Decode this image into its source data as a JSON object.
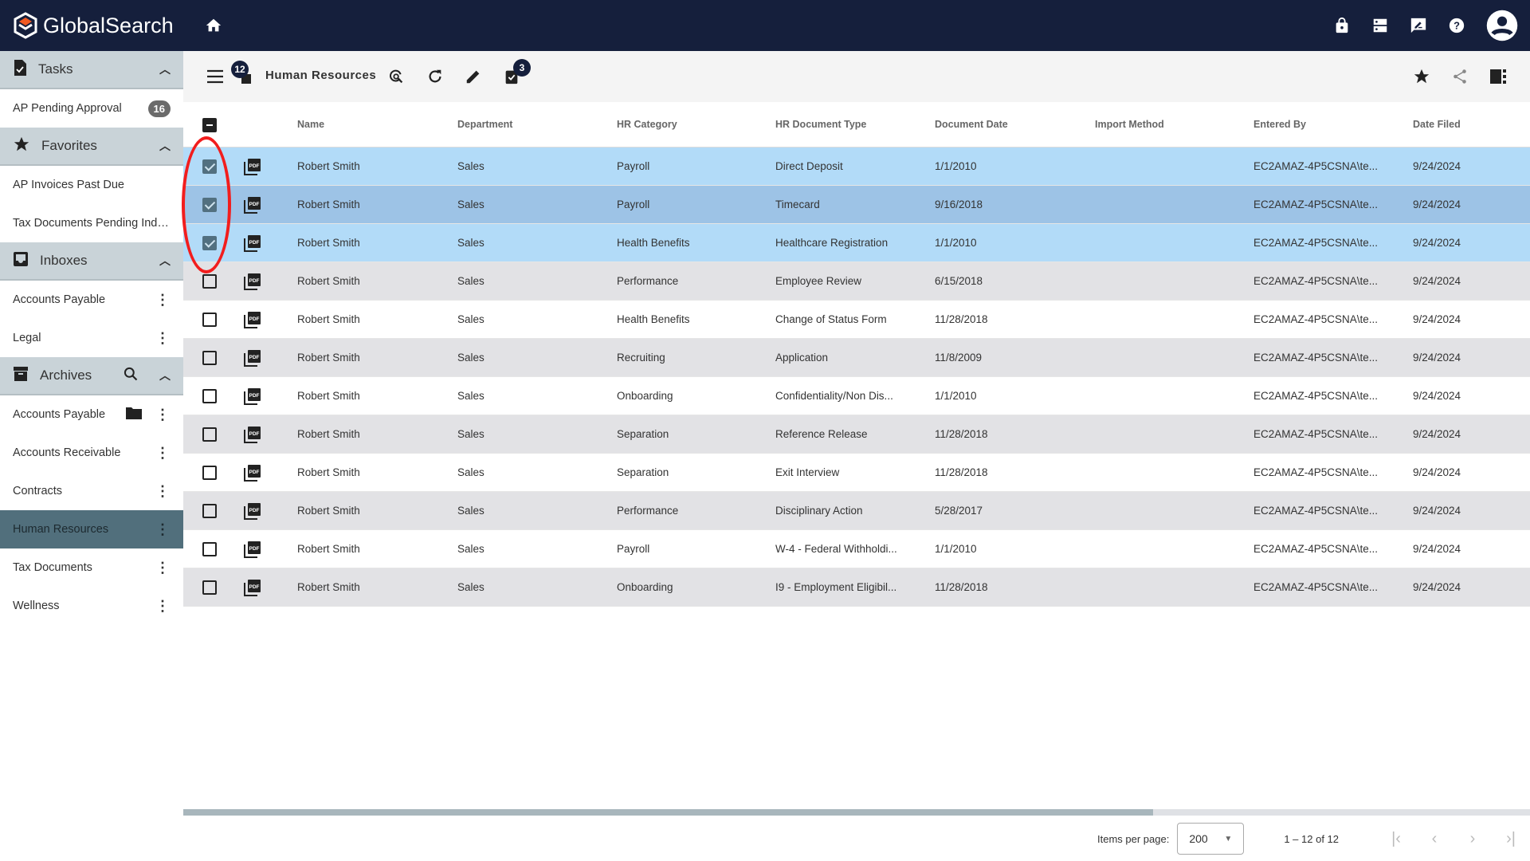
{
  "app": {
    "title": "GlobalSearch"
  },
  "topbar": {
    "icons": [
      "home-icon",
      "lock-icon",
      "server-icon",
      "feedback-icon",
      "help-icon",
      "account-icon"
    ]
  },
  "sidebar": {
    "sections": [
      {
        "title": "Tasks",
        "icon": "task-icon",
        "items": [
          {
            "label": "AP Pending Approval",
            "badge": "16"
          }
        ]
      },
      {
        "title": "Favorites",
        "icon": "star-icon",
        "items": [
          {
            "label": "AP Invoices Past Due"
          },
          {
            "label": "Tax Documents Pending Indexing"
          }
        ]
      },
      {
        "title": "Inboxes",
        "icon": "inbox-icon",
        "items": [
          {
            "label": "Accounts Payable",
            "menu": true
          },
          {
            "label": "Legal",
            "menu": true
          }
        ]
      },
      {
        "title": "Archives",
        "icon": "archive-icon",
        "search": true,
        "items": [
          {
            "label": "Accounts Payable",
            "folder": true,
            "menu": true
          },
          {
            "label": "Accounts Receivable",
            "menu": true
          },
          {
            "label": "Contracts",
            "menu": true
          },
          {
            "label": "Human Resources",
            "menu": true,
            "active": true
          },
          {
            "label": "Tax Documents",
            "menu": true
          },
          {
            "label": "Wellness",
            "menu": true
          }
        ]
      }
    ]
  },
  "toolbar": {
    "doc_count": "12",
    "title": "Human Resources",
    "selected_count": "3"
  },
  "table": {
    "columns": [
      "Name",
      "Department",
      "HR Category",
      "HR Document Type",
      "Document Date",
      "Import Method",
      "Entered By",
      "Date Filed"
    ],
    "rows": [
      {
        "checked": true,
        "cells": [
          "Robert Smith",
          "Sales",
          "Payroll",
          "Direct Deposit",
          "1/1/2010",
          "",
          "EC2AMAZ-4P5CSNA\\te...",
          "9/24/2024"
        ]
      },
      {
        "checked": true,
        "cells": [
          "Robert Smith",
          "Sales",
          "Payroll",
          "Timecard",
          "9/16/2018",
          "",
          "EC2AMAZ-4P5CSNA\\te...",
          "9/24/2024"
        ]
      },
      {
        "checked": true,
        "cells": [
          "Robert Smith",
          "Sales",
          "Health Benefits",
          "Healthcare Registration",
          "1/1/2010",
          "",
          "EC2AMAZ-4P5CSNA\\te...",
          "9/24/2024"
        ]
      },
      {
        "checked": false,
        "cells": [
          "Robert Smith",
          "Sales",
          "Performance",
          "Employee Review",
          "6/15/2018",
          "",
          "EC2AMAZ-4P5CSNA\\te...",
          "9/24/2024"
        ]
      },
      {
        "checked": false,
        "cells": [
          "Robert Smith",
          "Sales",
          "Health Benefits",
          "Change of Status Form",
          "11/28/2018",
          "",
          "EC2AMAZ-4P5CSNA\\te...",
          "9/24/2024"
        ]
      },
      {
        "checked": false,
        "cells": [
          "Robert Smith",
          "Sales",
          "Recruiting",
          "Application",
          "11/8/2009",
          "",
          "EC2AMAZ-4P5CSNA\\te...",
          "9/24/2024"
        ]
      },
      {
        "checked": false,
        "cells": [
          "Robert Smith",
          "Sales",
          "Onboarding",
          "Confidentiality/Non Dis...",
          "1/1/2010",
          "",
          "EC2AMAZ-4P5CSNA\\te...",
          "9/24/2024"
        ]
      },
      {
        "checked": false,
        "cells": [
          "Robert Smith",
          "Sales",
          "Separation",
          "Reference Release",
          "11/28/2018",
          "",
          "EC2AMAZ-4P5CSNA\\te...",
          "9/24/2024"
        ]
      },
      {
        "checked": false,
        "cells": [
          "Robert Smith",
          "Sales",
          "Separation",
          "Exit Interview",
          "11/28/2018",
          "",
          "EC2AMAZ-4P5CSNA\\te...",
          "9/24/2024"
        ]
      },
      {
        "checked": false,
        "cells": [
          "Robert Smith",
          "Sales",
          "Performance",
          "Disciplinary Action",
          "5/28/2017",
          "",
          "EC2AMAZ-4P5CSNA\\te...",
          "9/24/2024"
        ]
      },
      {
        "checked": false,
        "cells": [
          "Robert Smith",
          "Sales",
          "Payroll",
          "W-4 - Federal Withholdi...",
          "1/1/2010",
          "",
          "EC2AMAZ-4P5CSNA\\te...",
          "9/24/2024"
        ]
      },
      {
        "checked": false,
        "cells": [
          "Robert Smith",
          "Sales",
          "Onboarding",
          "I9 - Employment Eligibil...",
          "11/28/2018",
          "",
          "EC2AMAZ-4P5CSNA\\te...",
          "9/24/2024"
        ]
      }
    ]
  },
  "pager": {
    "items_per_page_label": "Items per page:",
    "items_per_page": "200",
    "range": "1 – 12 of 12"
  },
  "colors": {
    "topbar": "#151f3c",
    "selected_row": "#b2dbf8",
    "annotation": "#f21d1d"
  }
}
